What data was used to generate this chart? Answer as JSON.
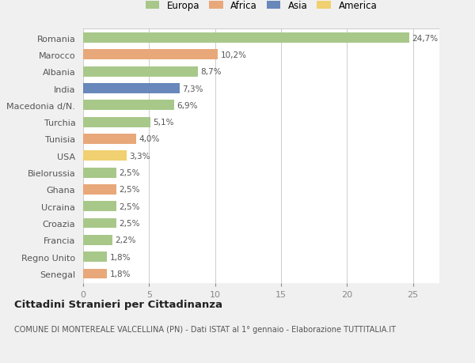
{
  "categories": [
    "Romania",
    "Marocco",
    "Albania",
    "India",
    "Macedonia d/N.",
    "Turchia",
    "Tunisia",
    "USA",
    "Bielorussia",
    "Ghana",
    "Ucraina",
    "Croazia",
    "Francia",
    "Regno Unito",
    "Senegal"
  ],
  "values": [
    24.7,
    10.2,
    8.7,
    7.3,
    6.9,
    5.1,
    4.0,
    3.3,
    2.5,
    2.5,
    2.5,
    2.5,
    2.2,
    1.8,
    1.8
  ],
  "labels": [
    "24,7%",
    "10,2%",
    "8,7%",
    "7,3%",
    "6,9%",
    "5,1%",
    "4,0%",
    "3,3%",
    "2,5%",
    "2,5%",
    "2,5%",
    "2,5%",
    "2,2%",
    "1,8%",
    "1,8%"
  ],
  "colors": [
    "#a8c88a",
    "#e8a87a",
    "#a8c88a",
    "#6888bb",
    "#a8c88a",
    "#a8c88a",
    "#e8a87a",
    "#f0d070",
    "#a8c88a",
    "#e8a87a",
    "#a8c88a",
    "#a8c88a",
    "#a8c88a",
    "#a8c88a",
    "#e8a87a"
  ],
  "legend_labels": [
    "Europa",
    "Africa",
    "Asia",
    "America"
  ],
  "legend_colors": [
    "#a8c88a",
    "#e8a87a",
    "#6888bb",
    "#f0d070"
  ],
  "title": "Cittadini Stranieri per Cittadinanza",
  "subtitle": "COMUNE DI MONTEREALE VALCELLINA (PN) - Dati ISTAT al 1° gennaio - Elaborazione TUTTITALIA.IT",
  "xlim": [
    0,
    27
  ],
  "xticks": [
    0,
    5,
    10,
    15,
    20,
    25
  ],
  "background_color": "#f0f0f0",
  "plot_bg_color": "#ffffff"
}
